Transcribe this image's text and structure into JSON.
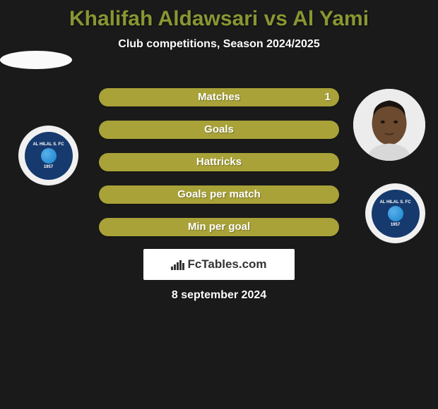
{
  "title": {
    "text": "Khalifah Aldawsari vs Al Yami",
    "color": "#8a9632",
    "fontsize": 30
  },
  "subtitle": {
    "text": "Club competitions, Season 2024/2025",
    "color": "#ffffff",
    "fontsize": 16
  },
  "bars": [
    {
      "label": "Matches",
      "value_right": "1",
      "show_value": true
    },
    {
      "label": "Goals",
      "value_right": "",
      "show_value": false
    },
    {
      "label": "Hattricks",
      "value_right": "",
      "show_value": false
    },
    {
      "label": "Goals per match",
      "value_right": "",
      "show_value": false
    },
    {
      "label": "Min per goal",
      "value_right": "",
      "show_value": false
    }
  ],
  "bar_style": {
    "background_color": "#a8a238",
    "label_color": "#ffffff",
    "value_color": "#ffffff",
    "height": 26,
    "gap": 20,
    "border_radius": 13,
    "label_fontsize": 15
  },
  "player1": {
    "name": "Khalifah Aldawsari",
    "avatar_bg": "#fafafa"
  },
  "player2": {
    "name": "Al Yami",
    "avatar_bg": "#ececec",
    "skin_color": "#6b4a2f",
    "hair_color": "#1a1410"
  },
  "club": {
    "name": "AL HILAL S. FC",
    "year": "1957",
    "inner_bg": "#163a6e",
    "ball_color": "#2a8ed6"
  },
  "fctables": {
    "text": "FcTables.com",
    "text_color": "#333333",
    "bg_color": "#ffffff",
    "icon_heights": [
      5,
      8,
      11,
      14,
      10
    ]
  },
  "date": {
    "text": "8 september 2024",
    "color": "#ffffff"
  },
  "background_color": "#1a1a1a"
}
